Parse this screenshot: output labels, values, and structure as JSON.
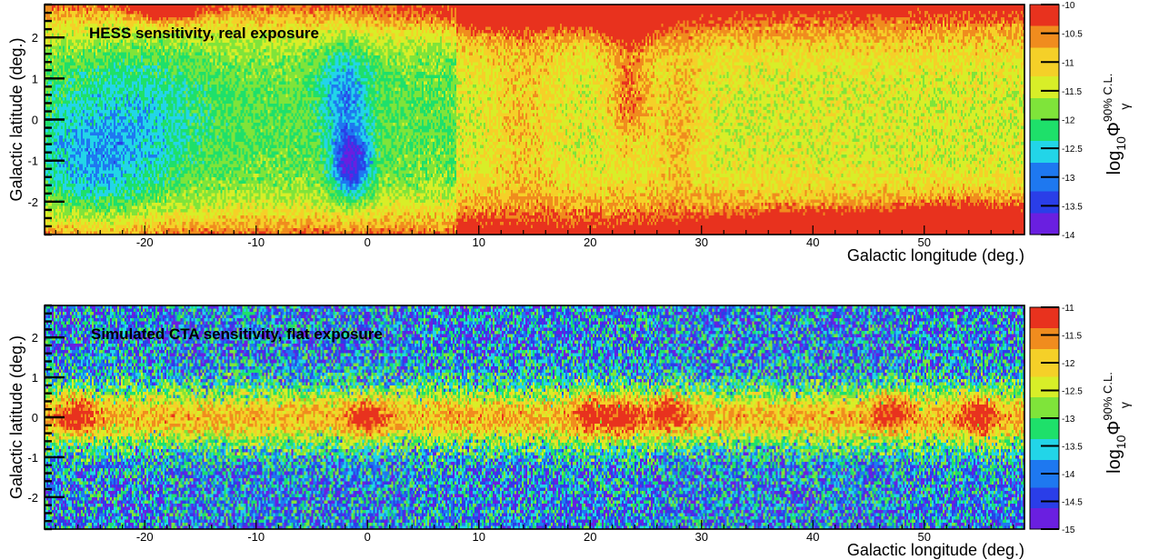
{
  "figure": {
    "colors": {
      "palette": [
        "#6a1fe0",
        "#2a3ee8",
        "#1e78f0",
        "#22d5e8",
        "#1ee06a",
        "#7fe43a",
        "#d8ee28",
        "#f5d028",
        "#f08c1e",
        "#e8321e"
      ],
      "frame": "#000000"
    }
  },
  "chart_data": [
    {
      "type": "heatmap",
      "panel_label": "HESS sensitivity, real exposure",
      "xlabel": "Galactic longitude (deg.)",
      "ylabel": "Galactic latitude (deg.)",
      "zlabel": {
        "main": "log",
        "sub": "10",
        "symbol": "Φ",
        "sup": "90% C.L.",
        "index": "γ"
      },
      "xlim": [
        -29,
        59
      ],
      "ylim": [
        -2.8,
        2.8
      ],
      "zlim": [
        -14,
        -10
      ],
      "x_ticks": [
        "-20",
        "-10",
        "0",
        "10",
        "20",
        "30",
        "40",
        "50"
      ],
      "x_tick_values": [
        -20,
        -10,
        0,
        10,
        20,
        30,
        40,
        50
      ],
      "y_ticks": [
        "2",
        "1",
        "0",
        "-1",
        "-2"
      ],
      "y_tick_values": [
        2,
        1,
        0,
        -1,
        -2
      ],
      "z_ticks": [
        "-10",
        "-10.5",
        "-11",
        "-11.5",
        "-12",
        "-12.5",
        "-13",
        "-13.5",
        "-14"
      ],
      "z_tick_values": [
        -10,
        -10.5,
        -11,
        -11.5,
        -12,
        -12.5,
        -13,
        -13.5,
        -14
      ],
      "hotspots": [
        {
          "l": -18,
          "b": 2.6,
          "value": -10.2
        },
        {
          "l": 23.5,
          "b": 2.4,
          "value": -10.1
        },
        {
          "l": 25,
          "b": -2.7,
          "value": -10.6
        },
        {
          "l": 55,
          "b": -2.5,
          "value": -10.3
        },
        {
          "l": -1.5,
          "b": -1.1,
          "value": -13.9
        },
        {
          "l": -2,
          "b": 0.8,
          "value": -12.9
        },
        {
          "l": -25,
          "b": -1.1,
          "value": -13.2
        },
        {
          "l": 38,
          "b": 0.2,
          "value": -11.5
        }
      ]
    },
    {
      "type": "heatmap",
      "panel_label": "Simulated CTA sensitivity, flat exposure",
      "xlabel": "Galactic longitude (deg.)",
      "ylabel": "Galactic latitude (deg.)",
      "zlabel": {
        "main": "log",
        "sub": "10",
        "symbol": "Φ",
        "sup": "90% C.L.",
        "index": "γ"
      },
      "xlim": [
        -29,
        59
      ],
      "ylim": [
        -2.8,
        2.8
      ],
      "zlim": [
        -15,
        -11
      ],
      "x_ticks": [
        "-20",
        "-10",
        "0",
        "10",
        "20",
        "30",
        "40",
        "50"
      ],
      "x_tick_values": [
        -20,
        -10,
        0,
        10,
        20,
        30,
        40,
        50
      ],
      "y_ticks": [
        "2",
        "1",
        "0",
        "-1",
        "-2"
      ],
      "y_tick_values": [
        2,
        1,
        0,
        -1,
        -2
      ],
      "z_ticks": [
        "-11",
        "-11.5",
        "-12",
        "-12.5",
        "-13",
        "-13.5",
        "-14",
        "-14.5",
        "-15"
      ],
      "z_tick_values": [
        -11,
        -11.5,
        -12,
        -12.5,
        -13,
        -13.5,
        -14,
        -14.5,
        -15
      ],
      "hotspots": [
        {
          "l": -26,
          "b": 0.1,
          "value": -11.1
        },
        {
          "l": 0,
          "b": 0.0,
          "value": -11.1
        },
        {
          "l": 20,
          "b": 0.1,
          "value": -11.2
        },
        {
          "l": 23,
          "b": 0.0,
          "value": -11.1
        },
        {
          "l": 27,
          "b": 0.2,
          "value": -11.3
        },
        {
          "l": 47,
          "b": 0.2,
          "value": -11.2
        },
        {
          "l": 55,
          "b": 0.0,
          "value": -11.3
        }
      ]
    }
  ]
}
